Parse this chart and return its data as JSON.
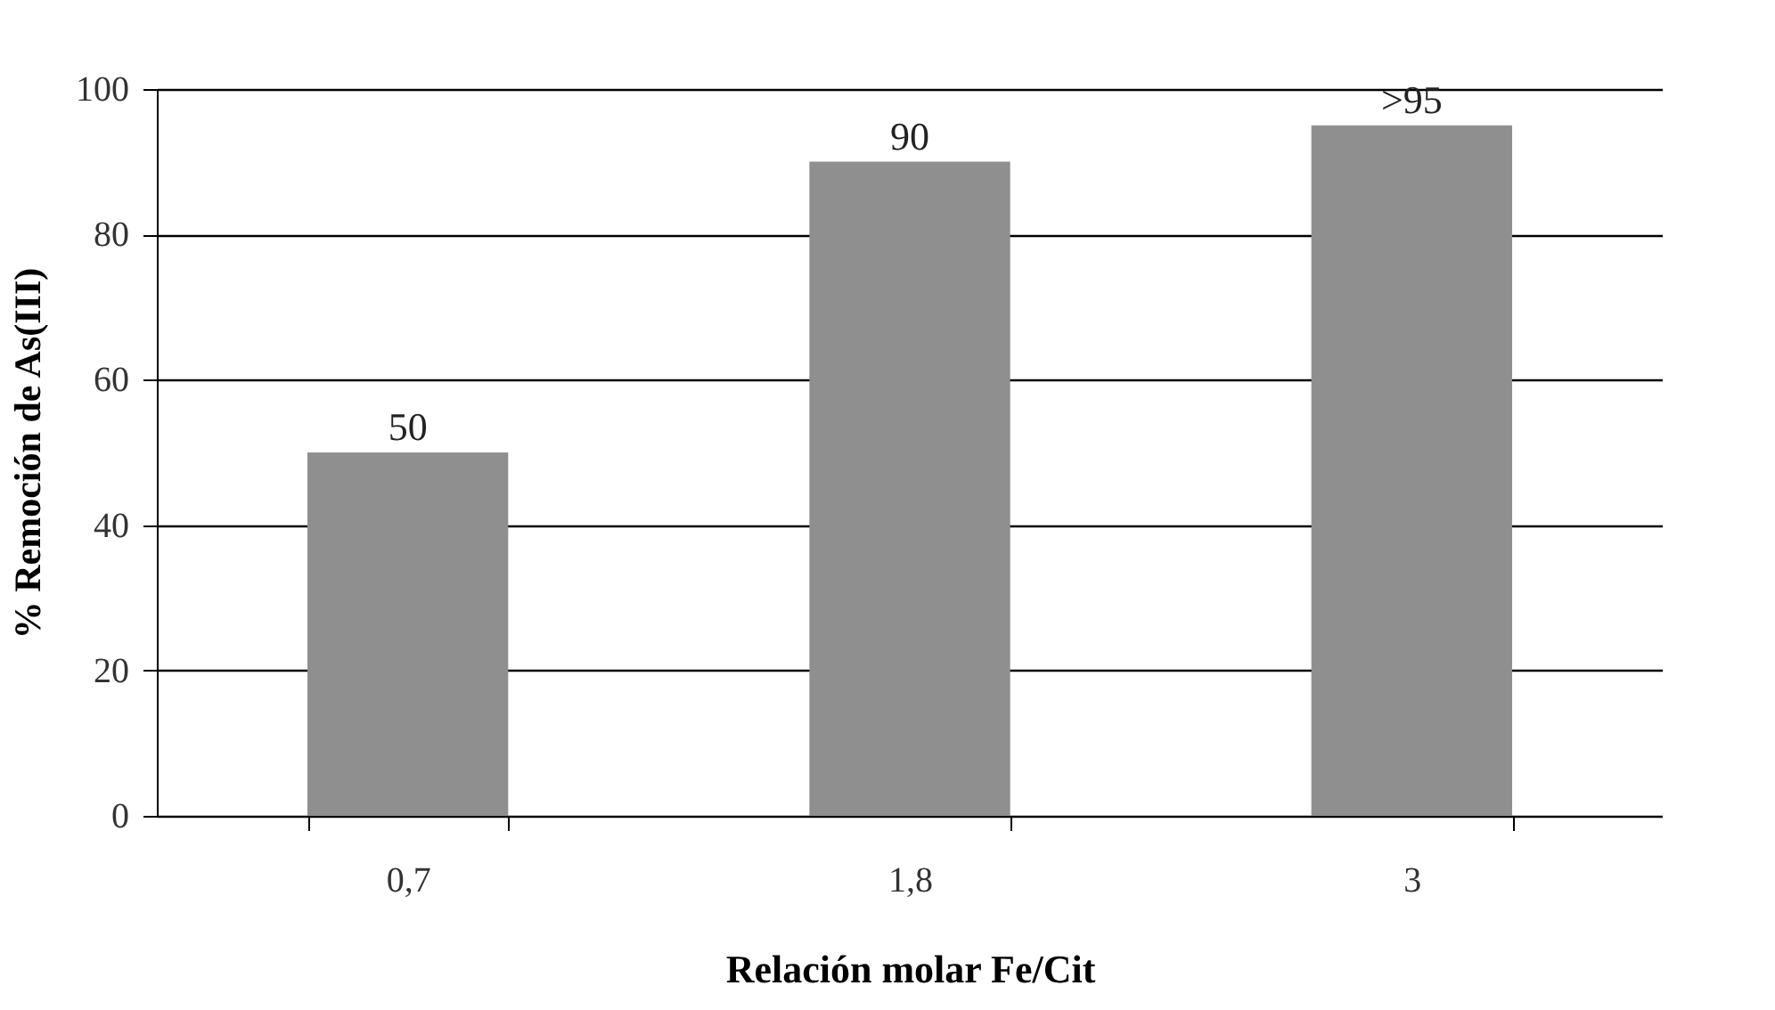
{
  "chart_data": {
    "type": "bar",
    "xlabel": "Relación molar Fe/Cit",
    "ylabel": "% Remoción de As(III)",
    "categories": [
      "0,7",
      "1,8",
      "3"
    ],
    "values": [
      50,
      90,
      95
    ],
    "value_labels": [
      "50",
      "90",
      ">95"
    ],
    "color": "#8f8f8f",
    "ylim": [
      0,
      100
    ],
    "yticks": [
      0,
      20,
      40,
      60,
      80,
      100
    ],
    "grid": "y"
  }
}
